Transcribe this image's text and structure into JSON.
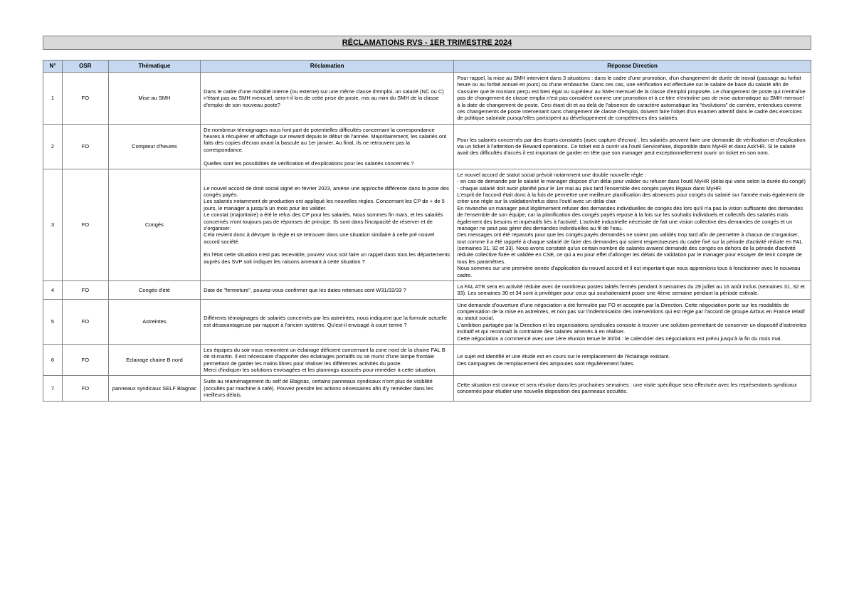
{
  "title": "RÉCLAMATIONS RVS - 1ER TRIMESTRE 2024",
  "headers": {
    "num": "N°",
    "osr": "OSR",
    "theme": "Thématique",
    "reclamation": "Réclamation",
    "reponse": "Réponse Direction"
  },
  "rows": [
    {
      "num": "1",
      "osr": "FO",
      "theme": "Mise au SMH",
      "reclamation": "Dans le cadre d'une mobilité interne (ou externe) sur une même classe d'emploi, un salarié (NC ou C) n'étant pas au SMH mensuel, sera-t-il lors de cette prise de poste, mis au mini du SMH de la classe d'emploi de son nouveau poste?",
      "reponse": "Pour rappel, la mise au SMH intervient dans 3 situations : dans le cadre d'une promotion, d'un changement de durée de travail (passage au forfait heure ou au forfait annuel en jours) ou d'une embauche. Dans ces cas, une vérification est effectuée sur le salaire de base du salarié afin de s'assurer que le montant perçu est bien égal ou supérieur au SMH mensuel de la classe d'emploi proposée. Le changement de poste qui n'entraîne pas de changement de classe emploi n'est pas considéré comme une promotion et à ce titre n'entraîne pas de mise automatique au SMH mensuel à la date de changement de poste. Ceci étant dit et au delà de l'absence de caractère automatique les \"évolutions\" de carrière, entendues comme ces changements de poste intervenant sans changement de classe d'emploi, doivent faire l'objet d'un examen attentif dans le cadre des exercices de politique salariale puisqu'elles participent au développement de compétences des salariés."
    },
    {
      "num": "2",
      "osr": "FO",
      "theme": "Compteur d'heures",
      "reclamation": "De nombreux témoignages nous font part de potentielles difficultés concernant la correspondance heures à récupérer et affichage sur reward depuis le début de l'année. Majoritairement, les salariés ont faits des copies d'écran avant la bascule au 1er janvier. Au final, ils ne retrouvent pas la correspondance.\n\nQuelles sont les possibilités de vérification et d'explications pour les salariés concernés ?",
      "reponse": "Pour les salariés concernés par des écarts constatés (avec capture d'écran) , les salariés peuvent faire une demande de vérification et d'explication via un ticket à l'attention de Reward operations. Ce ticket est à ouvrir via l'outil ServiceNow, disponible dans MyHR et dans Ask'HR. Si le salarié avait des difficultés d'accès il est important de garder en tête que son manager peut exceptionnellement ouvrir un ticket en son nom."
    },
    {
      "num": "3",
      "osr": "FO",
      "theme": "Congés",
      "reclamation": "Le nouvel accord de droit social signé en février 2023, amène une approche différente dans la pose des congés payés.\nLes salariés notamment de production ont appliqué les nouvelles règles. Concernant les CP de + de 5 jours, le manager a jusqu'à un mois pour les valider.\nLe constat (majoritaire) a été le refus des CP pour les salariés. Nous sommes fin mars, et les salariés concernés n'ont toujours pas de réponses de principe. Ils sont dans l'incapacité de réserver et de s'organiser.\nCela revient donc à dévoyer la règle et se retrouver dans une situation similaire à celle pré nouvel accord société.\n\nEn l'état cette situation n'est pas recevable, pouvez vous soit faire un rappel dans tous les départements auprès des SVP soit indiquer les raisons amenant à cette situation ?",
      "reponse": "Le nouvel accord de statut social prévoit notamment une double nouvelle règle :\n- en cas de demande par le salarié le manager dispose d'un délai pour valider ou refuser dans l'outil MyHR (délai qui varie selon la durée du congé)\n- chaque salarié doit avoir planifié pour le 1er mai au plus tard l'ensemble des congés payés légaux dans MyHR.\nL'esprit de l'accord était donc à la fois de permettre une meilleure planification des absences pour congés du salarié sur l'année mais également de créer une règle sur la validation/refus dans l'outil avec un délai clair.\nEn revanche un manager peut légitimement refuser des demandes individuelles de congés dès lors qu'il n'a pas la vision suffisante des demandes de l'ensemble de son équipe, car la planification des congés payés repose à la fois sur les souhaits individuels et collectifs des salariés mais également des besoins et impératifs liés à l'activité. L'activité industrielle nécessite de fait une vision collective des demandes de congés et un manager ne peut pas gérer des demandes individuelles au fil de l'eau.\nDes messages ont été repassés pour que les congés payés demandés ne soient pas validés trop tard afin de permettre à chacun de s'organiser, tout comme il a été rappelé à chaque salarié de faire des demandes qui soient respectueuses du cadre fixé sur la période d'activité réduite en FAL (semaines 31, 32 et 33). Nous avons constaté qu'un certain nombre de salariés avaient demandé des congés en dehors de la période d'activité réduite collective fixée et validée en CSE, ce qui a eu pour effet d'allonger les délais de validation par le manager pour essayer de tenir compte de tous les paramètres.\nNous sommes sur une première année d'application du nouvel accord et il est important que nous apprenions tous à fonctionner avec le nouveau cadre."
    },
    {
      "num": "4",
      "osr": "FO",
      "theme": "Congés d'été",
      "reclamation": "Date de \"fermeture\", pouvez-vous confirmer que les dates retenues sont W31/32/33 ?",
      "reponse": "La FAL ATR sera en activité réduite avec de nombreux postes taktés fermés pendant 3 semaines du 29 juillet au 16 août inclus (semaines 31, 32 et 33). Les semaines 30 et 34 sont à privilégier pour ceux qui souhaiteraient poser une 4ème semaine pendant la période estivale."
    },
    {
      "num": "5",
      "osr": "FO",
      "theme": "Astreintes",
      "reclamation": "Différents témoignages de salariés concernés par les astreintes, nous indiquent que la formule actuelle est désavantageuse par rapport à l'ancien système. Qu'est-il envisagé à court terme ?",
      "reponse": "Une demande d'ouverture d'une négociation a été formulée par FO et acceptée par la Direction. Cette négociation porte sur les modalités de compensation de la mise en astreintes, et non pas sur l'indemnisation des interventions qui est régie par l'accord de groupe Airbus en France relatif au statut social.\nL'ambition partagée par la Direction et les organisations syndicales consiste à trouver une solution permettant de conserver un dispositif d'astreintes incitatif et qui reconnaît la contrainte des salariés amenés à en réaliser.\nCette négociation a commencé avec une 1ère réunion tenue le 30/04 : le calendrier des négociations est prévu jusqu'à la fin du mois mai."
    },
    {
      "num": "6",
      "osr": "FO",
      "theme": "Eclairage chaine B nord",
      "reclamation": "Les équipes du soir nous remontent un éclairage déficient concernant la zone nord de la chaine FAL B de st-martin. Il est nécessaire d'apporter des éclairages portatifs ou se munir d'une lampe frontale permettant de garder les mains libres pour réaliser les différentes activités du poste.\nMerci d'indiquer les solutions envisagées et les plannings associés pour remédier à cette situation.",
      "reponse": "Le sujet est identifié et une étude est en cours sur le remplacement de l'éclairage existant.\nDes campagnes de remplacement des ampoules sont régulièrement faites."
    },
    {
      "num": "7",
      "osr": "FO",
      "theme": "panneaux syndicaux SELF Blagnac",
      "reclamation": "Suite au réaménagement du self de Blagnac, certains panneaux syndicaux n'ont plus de visibilité (occultés par machine à café). Pouvez prendre les actions nécessaires afin d'y remédier dans les meilleurs délais.",
      "reponse": "Cette situation est connue et sera résolue dans les prochaines semaines : une visite spécifique sera effectuée avec les représentants syndicaux concernés pour étudier une nouvelle disposition des panneaux occultés."
    }
  ],
  "colors": {
    "header_bg": "#c6d9f0",
    "title_bg": "#d9d9d9",
    "border": "#808080",
    "text": "#000000",
    "page_bg": "#ffffff"
  }
}
